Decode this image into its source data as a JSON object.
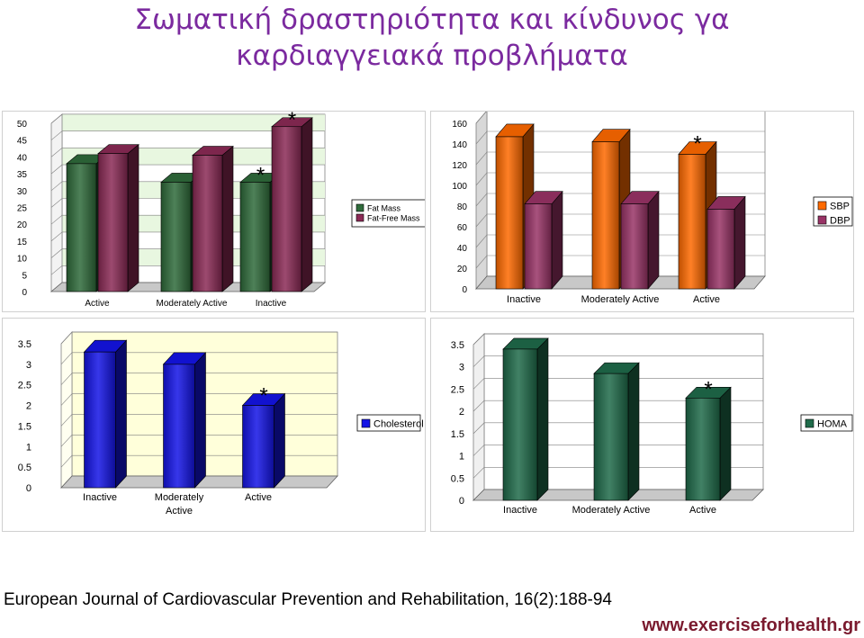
{
  "title": {
    "line1": "Σωματική δραστηριότητα και κίνδυνος γα",
    "line2": "καρδιαγγειακά προβλήματα"
  },
  "citation": "European Journal of Cardiovascular Prevention and Rehabilitation, 16(2):188-94",
  "website": "www.exerciseforhealth.gr",
  "chart_data": [
    {
      "type": "bar",
      "categories": [
        "Active",
        "Moderately Active",
        "Inactive"
      ],
      "series": [
        {
          "name": "Fat Mass",
          "values": [
            38,
            32.5,
            32.5
          ],
          "color": "#2f6b3b"
        },
        {
          "name": "Fat-Free Mass",
          "values": [
            41,
            40.5,
            49
          ],
          "color": "#8b2a55"
        }
      ],
      "ylim": [
        0,
        50
      ],
      "yticks": [
        0,
        5,
        10,
        15,
        20,
        25,
        30,
        35,
        40,
        45,
        50
      ],
      "annotations": [
        {
          "text": "*",
          "category": 2,
          "series": 0
        },
        {
          "text": "*",
          "category": 2,
          "series": 1
        }
      ],
      "legend": "right",
      "grid": true
    },
    {
      "type": "bar",
      "categories": [
        "Inactive",
        "Moderately Active",
        "Active"
      ],
      "series": [
        {
          "name": "SBP",
          "values": [
            147,
            142,
            130
          ],
          "color": "#ff6a00"
        },
        {
          "name": "DBP",
          "values": [
            82,
            82,
            77
          ],
          "color": "#993366"
        }
      ],
      "ylim": [
        0,
        160
      ],
      "yticks": [
        0,
        20,
        40,
        60,
        80,
        100,
        120,
        140,
        160
      ],
      "annotations": [
        {
          "text": "*",
          "category": 2,
          "series": 0
        }
      ],
      "legend": "right",
      "grid": true
    },
    {
      "type": "bar",
      "categories": [
        "Inactive",
        "Moderately Active",
        "Active"
      ],
      "series": [
        {
          "name": "Cholesterol",
          "values": [
            3.3,
            3.0,
            2.0
          ],
          "color": "#1414e6"
        }
      ],
      "ylim": [
        0,
        3.5
      ],
      "yticks": [
        0,
        0.5,
        1,
        1.5,
        2,
        2.5,
        3,
        3.5
      ],
      "annotations": [
        {
          "text": "*",
          "category": 2,
          "series": 0
        }
      ],
      "legend": "right",
      "grid": true
    },
    {
      "type": "bar",
      "categories": [
        "Inactive",
        "Moderately Active",
        "Active"
      ],
      "series": [
        {
          "name": "HOMA",
          "values": [
            3.4,
            2.85,
            2.3
          ],
          "color": "#1f6b4a"
        }
      ],
      "ylim": [
        0,
        3.5
      ],
      "yticks": [
        0,
        0.5,
        1,
        1.5,
        2,
        2.5,
        3,
        3.5
      ],
      "annotations": [
        {
          "text": "*",
          "category": 2,
          "series": 0
        }
      ],
      "legend": "right",
      "grid": true
    }
  ]
}
